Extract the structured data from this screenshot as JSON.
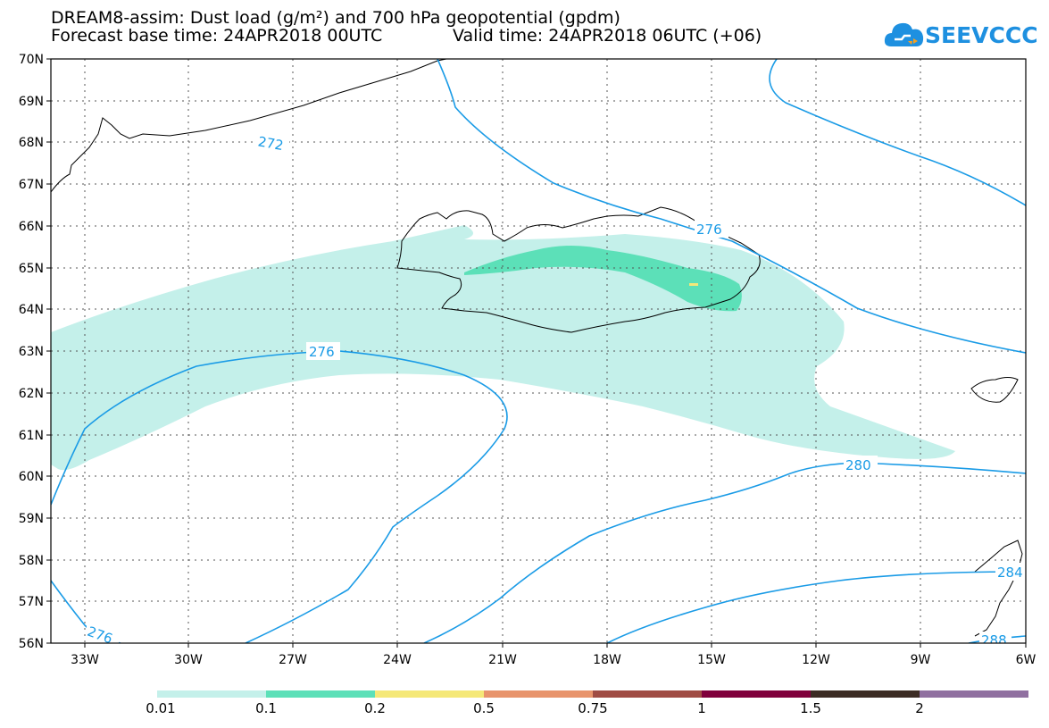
{
  "title_line1": "DREAM8-assim: Dust load (g/m²) and 700 hPa geopotential (gpdm)",
  "title_line2_base": "Forecast base time: 24APR2018 00UTC",
  "title_line2_valid": "Valid time: 24APR2018 06UTC (+06)",
  "logo_text": "SEEVCCC",
  "map": {
    "lat_labels": [
      "70N",
      "69N",
      "68N",
      "67N",
      "66N",
      "65N",
      "64N",
      "63N",
      "62N",
      "61N",
      "60N",
      "59N",
      "58N",
      "57N",
      "56N"
    ],
    "lon_labels": [
      "33W",
      "30W",
      "27W",
      "24W",
      "21W",
      "18W",
      "15W",
      "12W",
      "9W",
      "6W"
    ],
    "contour_labels": [
      "272",
      "276",
      "276",
      "280",
      "276",
      "284",
      "288"
    ]
  },
  "colorbar": {
    "colors": [
      "#c4f0ea",
      "#5ce0b8",
      "#f5e878",
      "#e8946c",
      "#a04c44",
      "#80003c",
      "#3c2c24",
      "#9070a0"
    ],
    "labels": [
      "0.01",
      "0.1",
      "0.2",
      "0.5",
      "0.75",
      "1",
      "1.5",
      "2"
    ]
  }
}
